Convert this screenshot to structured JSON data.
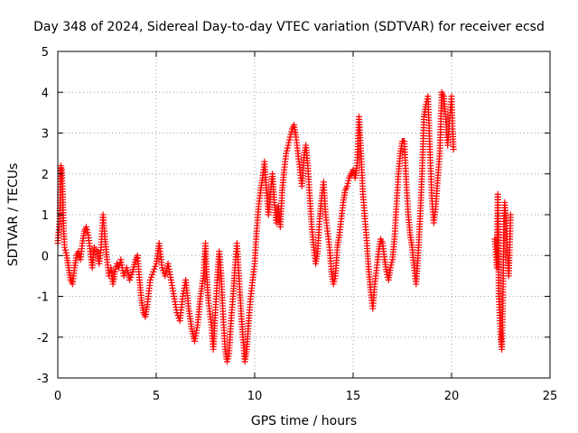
{
  "chart_data": {
    "type": "scatter",
    "title": "Day 348 of 2024, Sidereal Day-to-day VTEC variation (SDTVAR) for receiver ecsd",
    "xlabel": "GPS time / hours",
    "ylabel": "SDTVAR / TECUs",
    "xlim": [
      0,
      25
    ],
    "ylim": [
      -3,
      5
    ],
    "xticks": [
      0,
      5,
      10,
      15,
      20,
      25
    ],
    "yticks": [
      -3,
      -2,
      -1,
      0,
      1,
      2,
      3,
      4,
      5
    ],
    "grid": true,
    "marker": "+",
    "colors": {
      "series": "#ff0000",
      "grid": "#a0a0a0",
      "axis": "#000000"
    },
    "series": [
      {
        "name": "SDTVAR",
        "points": [
          [
            0.0,
            0.3
          ],
          [
            0.1,
            0.9
          ],
          [
            0.15,
            2.2
          ],
          [
            0.2,
            2.1
          ],
          [
            0.25,
            1.5
          ],
          [
            0.3,
            0.6
          ],
          [
            0.35,
            0.2
          ],
          [
            0.45,
            0.0
          ],
          [
            0.55,
            -0.3
          ],
          [
            0.65,
            -0.6
          ],
          [
            0.75,
            -0.7
          ],
          [
            0.85,
            -0.3
          ],
          [
            0.95,
            0.0
          ],
          [
            1.05,
            0.1
          ],
          [
            1.15,
            -0.1
          ],
          [
            1.25,
            0.3
          ],
          [
            1.35,
            0.6
          ],
          [
            1.45,
            0.7
          ],
          [
            1.55,
            0.5
          ],
          [
            1.65,
            0.1
          ],
          [
            1.75,
            -0.3
          ],
          [
            1.85,
            0.2
          ],
          [
            2.0,
            0.1
          ],
          [
            2.1,
            -0.2
          ],
          [
            2.2,
            0.2
          ],
          [
            2.3,
            1.0
          ],
          [
            2.4,
            0.4
          ],
          [
            2.5,
            -0.1
          ],
          [
            2.6,
            -0.5
          ],
          [
            2.7,
            -0.3
          ],
          [
            2.8,
            -0.7
          ],
          [
            2.9,
            -0.4
          ],
          [
            3.0,
            -0.2
          ],
          [
            3.1,
            -0.3
          ],
          [
            3.2,
            -0.1
          ],
          [
            3.35,
            -0.5
          ],
          [
            3.5,
            -0.3
          ],
          [
            3.65,
            -0.6
          ],
          [
            3.8,
            -0.4
          ],
          [
            3.95,
            -0.1
          ],
          [
            4.05,
            0.0
          ],
          [
            4.15,
            -0.6
          ],
          [
            4.25,
            -1.1
          ],
          [
            4.35,
            -1.4
          ],
          [
            4.45,
            -1.5
          ],
          [
            4.55,
            -1.2
          ],
          [
            4.7,
            -0.6
          ],
          [
            4.85,
            -0.4
          ],
          [
            5.0,
            -0.2
          ],
          [
            5.15,
            0.3
          ],
          [
            5.3,
            -0.3
          ],
          [
            5.45,
            -0.5
          ],
          [
            5.6,
            -0.2
          ],
          [
            5.75,
            -0.6
          ],
          [
            5.9,
            -1.0
          ],
          [
            6.05,
            -1.4
          ],
          [
            6.2,
            -1.6
          ],
          [
            6.35,
            -1.0
          ],
          [
            6.5,
            -0.6
          ],
          [
            6.65,
            -1.3
          ],
          [
            6.8,
            -1.8
          ],
          [
            6.95,
            -2.1
          ],
          [
            7.1,
            -1.7
          ],
          [
            7.25,
            -1.0
          ],
          [
            7.4,
            -0.5
          ],
          [
            7.5,
            0.3
          ],
          [
            7.55,
            -0.4
          ],
          [
            7.65,
            -1.1
          ],
          [
            7.8,
            -1.7
          ],
          [
            7.9,
            -2.3
          ],
          [
            8.0,
            -1.4
          ],
          [
            8.1,
            -0.6
          ],
          [
            8.2,
            0.1
          ],
          [
            8.3,
            -0.5
          ],
          [
            8.4,
            -1.5
          ],
          [
            8.5,
            -2.3
          ],
          [
            8.6,
            -2.6
          ],
          [
            8.7,
            -2.4
          ],
          [
            8.8,
            -1.6
          ],
          [
            8.9,
            -1.0
          ],
          [
            9.0,
            -0.3
          ],
          [
            9.1,
            0.3
          ],
          [
            9.2,
            -0.5
          ],
          [
            9.3,
            -1.3
          ],
          [
            9.4,
            -2.0
          ],
          [
            9.5,
            -2.6
          ],
          [
            9.6,
            -2.3
          ],
          [
            9.7,
            -1.6
          ],
          [
            9.8,
            -1.0
          ],
          [
            9.9,
            -0.6
          ],
          [
            10.0,
            -0.2
          ],
          [
            10.1,
            0.6
          ],
          [
            10.2,
            1.2
          ],
          [
            10.3,
            1.6
          ],
          [
            10.4,
            1.9
          ],
          [
            10.5,
            2.3
          ],
          [
            10.6,
            1.6
          ],
          [
            10.7,
            1.0
          ],
          [
            10.8,
            1.5
          ],
          [
            10.9,
            2.0
          ],
          [
            11.0,
            1.3
          ],
          [
            11.1,
            0.8
          ],
          [
            11.2,
            1.2
          ],
          [
            11.3,
            0.7
          ],
          [
            11.4,
            1.6
          ],
          [
            11.5,
            2.1
          ],
          [
            11.6,
            2.5
          ],
          [
            11.7,
            2.7
          ],
          [
            11.8,
            2.9
          ],
          [
            11.9,
            3.1
          ],
          [
            12.0,
            3.2
          ],
          [
            12.1,
            2.9
          ],
          [
            12.2,
            2.5
          ],
          [
            12.3,
            2.1
          ],
          [
            12.4,
            1.7
          ],
          [
            12.5,
            2.4
          ],
          [
            12.6,
            2.7
          ],
          [
            12.7,
            2.2
          ],
          [
            12.8,
            1.4
          ],
          [
            12.9,
            0.7
          ],
          [
            13.0,
            0.2
          ],
          [
            13.1,
            -0.2
          ],
          [
            13.2,
            0.1
          ],
          [
            13.3,
            0.9
          ],
          [
            13.4,
            1.4
          ],
          [
            13.5,
            1.8
          ],
          [
            13.6,
            1.0
          ],
          [
            13.7,
            0.6
          ],
          [
            13.8,
            0.2
          ],
          [
            13.9,
            -0.4
          ],
          [
            14.0,
            -0.7
          ],
          [
            14.1,
            -0.5
          ],
          [
            14.2,
            0.2
          ],
          [
            14.3,
            0.5
          ],
          [
            14.4,
            0.9
          ],
          [
            14.5,
            1.3
          ],
          [
            14.6,
            1.6
          ],
          [
            14.7,
            1.7
          ],
          [
            14.8,
            1.9
          ],
          [
            14.9,
            2.0
          ],
          [
            15.0,
            2.1
          ],
          [
            15.1,
            1.9
          ],
          [
            15.2,
            2.2
          ],
          [
            15.3,
            3.4
          ],
          [
            15.4,
            2.5
          ],
          [
            15.5,
            1.5
          ],
          [
            15.6,
            0.9
          ],
          [
            15.7,
            0.3
          ],
          [
            15.8,
            -0.4
          ],
          [
            15.9,
            -0.9
          ],
          [
            16.0,
            -1.3
          ],
          [
            16.1,
            -0.7
          ],
          [
            16.2,
            -0.3
          ],
          [
            16.3,
            0.1
          ],
          [
            16.4,
            0.4
          ],
          [
            16.5,
            0.3
          ],
          [
            16.6,
            -0.1
          ],
          [
            16.7,
            -0.4
          ],
          [
            16.8,
            -0.6
          ],
          [
            16.9,
            -0.3
          ],
          [
            17.0,
            -0.1
          ],
          [
            17.1,
            0.4
          ],
          [
            17.2,
            1.2
          ],
          [
            17.3,
            2.0
          ],
          [
            17.4,
            2.5
          ],
          [
            17.5,
            2.8
          ],
          [
            17.6,
            2.8
          ],
          [
            17.7,
            1.8
          ],
          [
            17.8,
            1.0
          ],
          [
            17.9,
            0.5
          ],
          [
            18.0,
            0.2
          ],
          [
            18.1,
            -0.3
          ],
          [
            18.2,
            -0.7
          ],
          [
            18.3,
            0.0
          ],
          [
            18.4,
            0.9
          ],
          [
            18.5,
            2.0
          ],
          [
            18.6,
            3.4
          ],
          [
            18.7,
            3.7
          ],
          [
            18.8,
            3.9
          ],
          [
            18.9,
            2.6
          ],
          [
            19.0,
            1.4
          ],
          [
            19.1,
            0.8
          ],
          [
            19.2,
            1.2
          ],
          [
            19.3,
            1.9
          ],
          [
            19.4,
            2.5
          ],
          [
            19.5,
            4.0
          ],
          [
            19.6,
            3.9
          ],
          [
            19.7,
            3.4
          ],
          [
            19.8,
            2.7
          ],
          [
            19.9,
            3.3
          ],
          [
            20.0,
            3.9
          ],
          [
            20.05,
            3.1
          ],
          [
            20.1,
            2.6
          ],
          [
            22.2,
            0.4
          ],
          [
            22.3,
            -0.3
          ],
          [
            22.35,
            1.5
          ],
          [
            22.4,
            -1.0
          ],
          [
            22.5,
            -2.0
          ],
          [
            22.55,
            -2.3
          ],
          [
            22.6,
            -1.3
          ],
          [
            22.65,
            0.5
          ],
          [
            22.7,
            1.3
          ],
          [
            22.8,
            0.6
          ],
          [
            22.85,
            0.0
          ],
          [
            22.9,
            -0.5
          ],
          [
            22.95,
            0.2
          ],
          [
            23.0,
            1.0
          ]
        ]
      }
    ]
  }
}
